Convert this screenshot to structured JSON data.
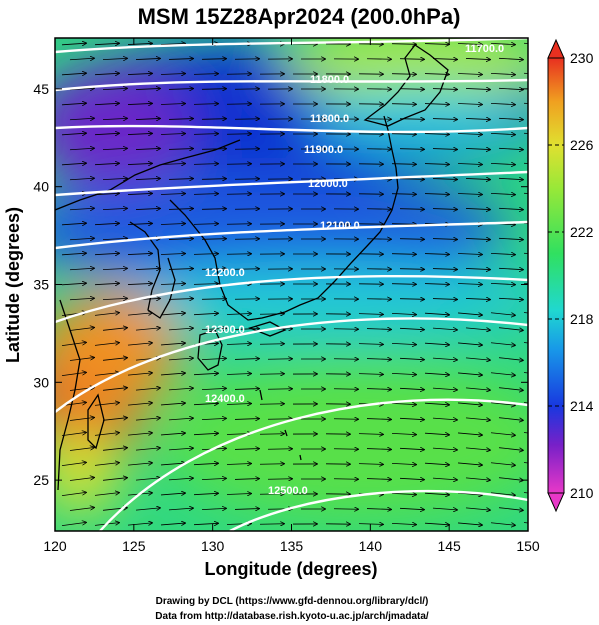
{
  "chart_data": {
    "type": "heatmap",
    "title": "MSM 15Z28Apr2024 (200.0hPa)",
    "xlabel": "Longitude (degrees)",
    "ylabel": "Latitude  (degrees)",
    "xlim": [
      120,
      150
    ],
    "ylim": [
      22.4,
      47.6
    ],
    "xticks": [
      120,
      125,
      130,
      135,
      140,
      145,
      150
    ],
    "yticks": [
      25,
      30,
      35,
      40,
      45
    ],
    "colorbar": {
      "range": [
        210,
        230
      ],
      "ticks": [
        210,
        214,
        218,
        222,
        226,
        230
      ],
      "colormap": [
        "#e838c8",
        "#7820c8",
        "#1838e0",
        "#1898e8",
        "#20d8d0",
        "#30e060",
        "#98e838",
        "#e0e030",
        "#f0a020",
        "#e83020"
      ]
    },
    "contours": [
      {
        "label": "11700.0",
        "level": 11700
      },
      {
        "label": "11800.0",
        "level": 11800
      },
      {
        "label": "11900.0",
        "level": 11900
      },
      {
        "label": "12000.0",
        "level": 12000
      },
      {
        "label": "12100.0",
        "level": 12100
      },
      {
        "label": "12200.0",
        "level": 12200
      },
      {
        "label": "12300.0",
        "level": 12300
      },
      {
        "label": "12400.0",
        "level": 12400
      },
      {
        "label": "12500.0",
        "level": 12500
      }
    ],
    "colors": {
      "contour": "#ffffff",
      "coast": "#000000",
      "vector": "#000000"
    }
  },
  "credits": [
    "Drawing by DCL (https://www.gfd-dennou.org/library/dcl/)",
    "Data from http://database.rish.kyoto-u.ac.jp/arch/jmadata/"
  ]
}
